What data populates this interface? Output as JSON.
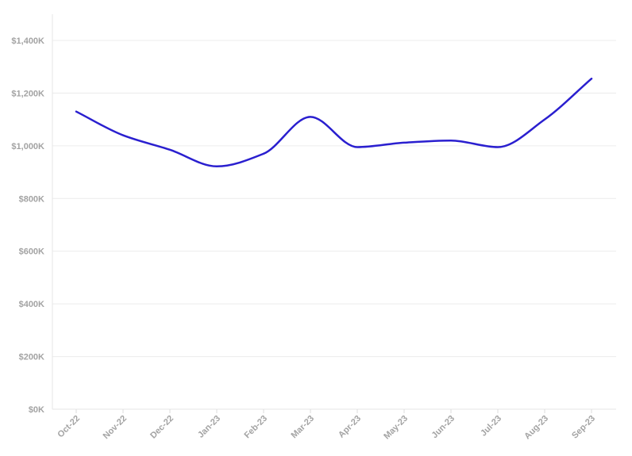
{
  "chart_data": {
    "type": "line",
    "categories": [
      "Oct-22",
      "Nov-22",
      "Dec-22",
      "Jan-23",
      "Feb-23",
      "Mar-23",
      "Apr-23",
      "May-23",
      "Jun-23",
      "Jul-23",
      "Aug-23",
      "Sep-23"
    ],
    "series": [
      {
        "values": [
          1130000,
          1040000,
          985000,
          922000,
          970000,
          1110000,
          995000,
          1012000,
          1020000,
          995000,
          1100000,
          1255000
        ],
        "color": "#2a1fcf"
      }
    ],
    "ylim": [
      0,
      1400000
    ],
    "yticks": [
      0,
      200000,
      400000,
      600000,
      800000,
      1000000,
      1200000,
      1400000
    ],
    "ytick_labels": [
      "$0K",
      "$200K",
      "$400K",
      "$600K",
      "$800K",
      "$1,000K",
      "$1,200K",
      "$1,400K"
    ],
    "grid": true,
    "legend": "none"
  }
}
